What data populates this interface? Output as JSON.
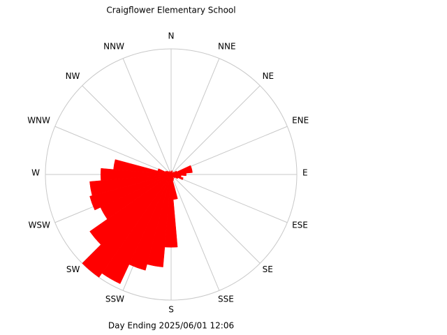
{
  "chart_data": {
    "type": "rose",
    "title": "Craigflower Elementary School",
    "footer": "Day Ending 2025/06/01 12:06",
    "directions": [
      "N",
      "NNE",
      "NE",
      "ENE",
      "E",
      "ESE",
      "SE",
      "SSE",
      "S",
      "SSW",
      "SW",
      "WSW",
      "W",
      "WNW",
      "NW",
      "NNW"
    ],
    "theta": [
      0,
      10,
      20,
      30,
      40,
      50,
      60,
      70,
      80,
      90,
      100,
      110,
      120,
      130,
      140,
      150,
      160,
      170,
      180,
      190,
      200,
      210,
      220,
      230,
      240,
      250,
      260,
      270,
      280,
      290,
      300,
      310,
      320,
      330,
      340,
      350
    ],
    "values": [
      2,
      3,
      3,
      2,
      2,
      3,
      5,
      17,
      17,
      12,
      8,
      10,
      6,
      4,
      3,
      4,
      5,
      20,
      58,
      74,
      79,
      96,
      100,
      79,
      62,
      67,
      65,
      56,
      46,
      11,
      5,
      4,
      3,
      2,
      3,
      2
    ],
    "rlim": [
      0,
      100
    ],
    "color": "#ff0000",
    "grid": true
  }
}
